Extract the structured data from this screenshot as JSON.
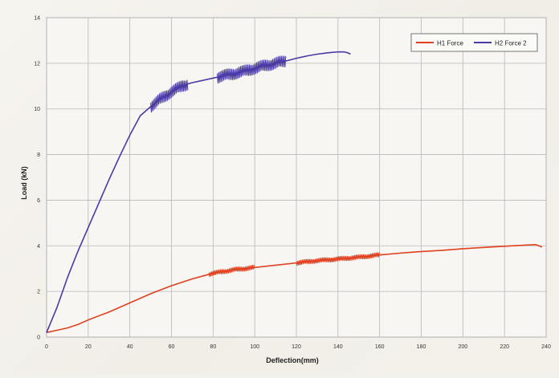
{
  "chart_data": {
    "type": "line",
    "title": "",
    "xlabel": "Deflection(mm)",
    "ylabel": "Load (kN)",
    "xlim": [
      0,
      240
    ],
    "ylim": [
      0,
      14
    ],
    "x_ticks": [
      "0",
      "20",
      "40",
      "60",
      "80",
      "100",
      "120",
      "140",
      "160",
      "180",
      "200",
      "220",
      "240"
    ],
    "y_ticks": [
      "0",
      "2",
      "4",
      "6",
      "8",
      "10",
      "12",
      "14"
    ],
    "grid": true,
    "legend_position": "top-right",
    "series": [
      {
        "name": "H1 Force",
        "color": "#e0401f",
        "noisy_ranges": [
          [
            78,
            100
          ],
          [
            120,
            160
          ]
        ],
        "x": [
          0,
          5,
          10,
          15,
          20,
          30,
          40,
          50,
          60,
          70,
          80,
          90,
          100,
          110,
          120,
          130,
          140,
          150,
          160,
          170,
          180,
          190,
          200,
          210,
          220,
          230,
          235,
          238
        ],
        "y": [
          0.2,
          0.3,
          0.4,
          0.55,
          0.75,
          1.1,
          1.5,
          1.9,
          2.25,
          2.55,
          2.8,
          2.95,
          3.05,
          3.15,
          3.25,
          3.35,
          3.42,
          3.5,
          3.6,
          3.68,
          3.75,
          3.8,
          3.87,
          3.93,
          3.98,
          4.03,
          4.05,
          3.95
        ]
      },
      {
        "name": "H2 Force 2",
        "color": "#4a3aa6",
        "noisy_ranges": [
          [
            50,
            68
          ],
          [
            82,
            115
          ]
        ],
        "x": [
          0,
          5,
          10,
          15,
          20,
          25,
          30,
          35,
          40,
          45,
          50,
          55,
          60,
          65,
          68,
          70,
          75,
          80,
          85,
          90,
          95,
          100,
          105,
          110,
          115,
          120,
          125,
          130,
          135,
          140,
          143,
          145,
          146
        ],
        "y": [
          0.2,
          1.3,
          2.6,
          3.75,
          4.8,
          5.85,
          6.9,
          7.9,
          8.85,
          9.7,
          10.1,
          10.45,
          10.75,
          11.0,
          11.1,
          11.15,
          11.25,
          11.35,
          11.45,
          11.55,
          11.65,
          11.78,
          11.9,
          12.0,
          12.1,
          12.22,
          12.32,
          12.4,
          12.46,
          12.5,
          12.5,
          12.45,
          12.4
        ]
      }
    ]
  }
}
